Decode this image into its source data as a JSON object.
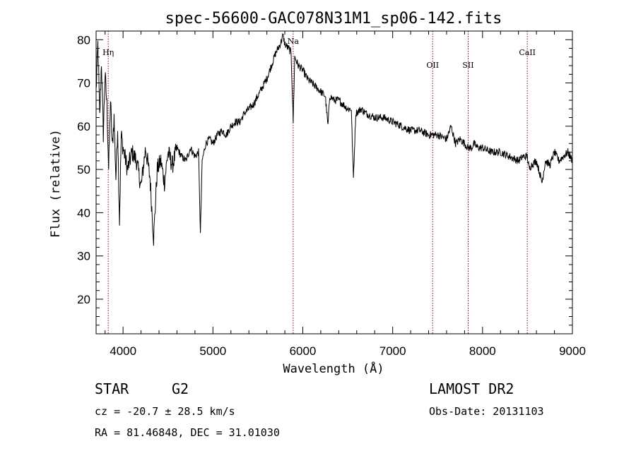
{
  "chart_data": {
    "type": "line",
    "title": "spec-56600-GAC078N31M1_sp06-142.fits",
    "xlabel": "Wavelength (Å)",
    "ylabel": "Flux (relative)",
    "xlim": [
      3700,
      9000
    ],
    "ylim": [
      12,
      82
    ],
    "xticks": [
      4000,
      5000,
      6000,
      7000,
      8000,
      9000
    ],
    "yticks": [
      20,
      30,
      40,
      50,
      60,
      70,
      80
    ],
    "spectral_lines": [
      {
        "label": "Hη",
        "wavelength": 3835
      },
      {
        "label": "Na",
        "wavelength": 5893
      },
      {
        "label": "OII",
        "wavelength": 7445
      },
      {
        "label": "SII",
        "wavelength": 7840
      },
      {
        "label": "CaII",
        "wavelength": 8498
      }
    ],
    "series": [
      {
        "x": [
          3700,
          3720,
          3740,
          3760,
          3780,
          3800,
          3820,
          3840,
          3860,
          3880,
          3900,
          3920,
          3940,
          3960,
          3980,
          4000,
          4050,
          4100,
          4150,
          4200,
          4250,
          4300,
          4340,
          4380,
          4420,
          4460,
          4500,
          4550,
          4600,
          4650,
          4700,
          4750,
          4800,
          4840,
          4861,
          4880,
          4920,
          4960,
          5000,
          5050,
          5100,
          5150,
          5200,
          5250,
          5300,
          5350,
          5400,
          5450,
          5500,
          5550,
          5600,
          5650,
          5700,
          5750,
          5780,
          5800,
          5840,
          5870,
          5893,
          5910,
          5950,
          6000,
          6050,
          6100,
          6150,
          6200,
          6250,
          6280,
          6300,
          6350,
          6400,
          6450,
          6500,
          6540,
          6563,
          6590,
          6650,
          6700,
          6800,
          6900,
          7000,
          7100,
          7200,
          7300,
          7400,
          7500,
          7600,
          7650,
          7700,
          7750,
          7800,
          7840,
          7880,
          7900,
          7950,
          8000,
          8100,
          8200,
          8300,
          8400,
          8450,
          8498,
          8520,
          8542,
          8600,
          8662,
          8700,
          8750,
          8800,
          8850,
          8900,
          8950,
          9000
        ],
        "y": [
          68,
          79,
          62,
          75,
          58,
          72,
          65,
          50,
          66,
          55,
          62,
          48,
          60,
          38,
          58,
          55,
          50,
          54,
          52,
          46,
          55,
          48,
          34,
          50,
          52,
          47,
          54,
          51,
          55,
          53,
          52,
          55,
          53,
          54,
          35,
          52,
          56,
          57,
          56,
          58,
          59,
          58,
          60,
          61,
          61,
          63,
          64,
          65,
          67,
          69,
          71,
          74,
          77,
          79,
          81,
          79,
          78,
          77,
          61,
          76,
          74,
          73,
          71,
          70,
          69,
          68,
          67,
          60,
          67,
          66,
          66,
          65,
          64,
          64,
          48,
          63,
          64,
          63,
          62,
          62,
          61,
          60,
          59,
          59,
          58,
          58,
          57,
          60,
          56,
          57,
          56,
          55,
          55,
          56,
          55,
          55,
          54,
          54,
          53,
          52,
          53,
          53,
          50,
          51,
          52,
          47,
          52,
          51,
          54,
          52,
          53,
          54,
          52
        ]
      }
    ]
  },
  "info": {
    "object_class": "STAR",
    "subclass": "G2",
    "survey": "LAMOST DR2",
    "redshift": "cz = -20.7 ± 28.5 km/s",
    "obs_date": "Obs-Date: 20131103",
    "coords": "RA =  81.46848, DEC =  31.01030"
  }
}
